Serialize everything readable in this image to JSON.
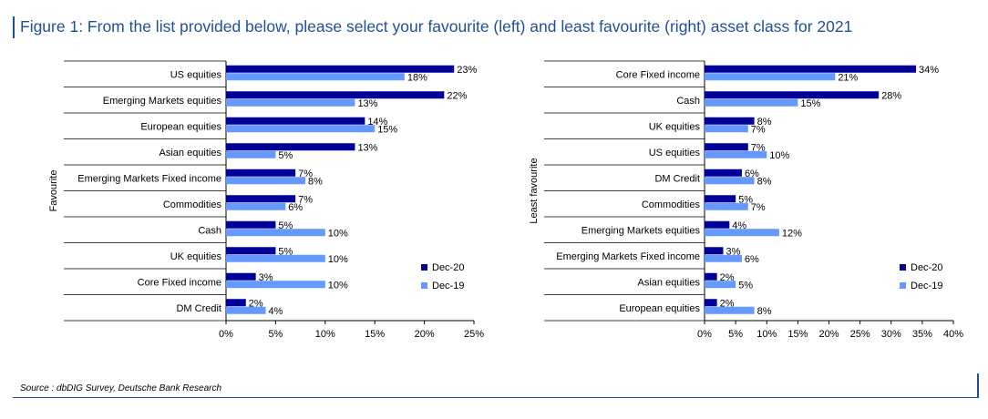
{
  "title": "Figure 1: From the list provided below, please select your favourite (left) and least favourite (right) asset class for 2021",
  "source": "Source : dbDIG Survey, Deutsche Bank Research",
  "colors": {
    "dec20": "#000099",
    "dec19": "#6699ff"
  },
  "chart_data": [
    {
      "type": "bar",
      "orientation": "horizontal",
      "ylabel": "Favourite",
      "categories": [
        "US equities",
        "Emerging Markets equities",
        "European equities",
        "Asian equities",
        "Emerging Markets Fixed income",
        "Commodities",
        "Cash",
        "UK equities",
        "Core Fixed income",
        "DM Credit"
      ],
      "series": [
        {
          "name": "Dec-20",
          "values": [
            23,
            22,
            14,
            13,
            7,
            7,
            5,
            5,
            3,
            2
          ],
          "labels": [
            "23%",
            "22%",
            "14%",
            "13%",
            "7%",
            "7%",
            "5%",
            "5%",
            "3%",
            "2%"
          ]
        },
        {
          "name": "Dec-19",
          "values": [
            18,
            13,
            15,
            5,
            8,
            6,
            10,
            10,
            10,
            4
          ],
          "labels": [
            "18%",
            "13%",
            "15%",
            "5%",
            "8%",
            "6%",
            "10%",
            "10%",
            "10%",
            "4%"
          ]
        }
      ],
      "xlim": [
        0,
        25
      ],
      "ticks": [
        0,
        5,
        10,
        15,
        20,
        25
      ],
      "tick_labels": [
        "0%",
        "5%",
        "10%",
        "15%",
        "20%",
        "25%"
      ],
      "legend": "bottom-right"
    },
    {
      "type": "bar",
      "orientation": "horizontal",
      "ylabel": "Least favourite",
      "categories": [
        "Core Fixed income",
        "Cash",
        "UK equities",
        "US equities",
        "DM Credit",
        "Commodities",
        "Emerging Markets equities",
        "Emerging Markets Fixed income",
        "Asian equities",
        "European equities"
      ],
      "series": [
        {
          "name": "Dec-20",
          "values": [
            34,
            28,
            8,
            7,
            6,
            5,
            4,
            3,
            2,
            2
          ],
          "labels": [
            "34%",
            "28%",
            "8%",
            "7%",
            "6%",
            "5%",
            "4%",
            "3%",
            "2%",
            "2%"
          ]
        },
        {
          "name": "Dec-19",
          "values": [
            21,
            15,
            7,
            10,
            8,
            7,
            12,
            6,
            5,
            8
          ],
          "labels": [
            "21%",
            "15%",
            "7%",
            "10%",
            "8%",
            "7%",
            "12%",
            "6%",
            "5%",
            "8%"
          ]
        }
      ],
      "xlim": [
        0,
        40
      ],
      "ticks": [
        0,
        5,
        10,
        15,
        20,
        25,
        30,
        35,
        40
      ],
      "tick_labels": [
        "0%",
        "5%",
        "10%",
        "15%",
        "20%",
        "25%",
        "30%",
        "35%",
        "40%"
      ],
      "legend": "bottom-right"
    }
  ]
}
